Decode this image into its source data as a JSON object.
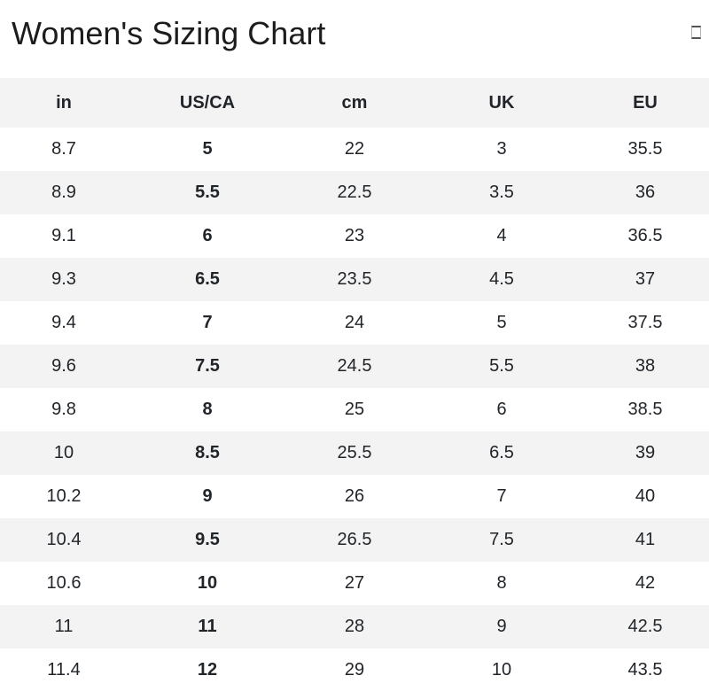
{
  "header": {
    "title": "Women's Sizing Chart",
    "corner_icon": "missing-glyph-box"
  },
  "chart_data": {
    "type": "table",
    "title": "Women's Sizing Chart",
    "columns": [
      "in",
      "US/CA",
      "cm",
      "UK",
      "EU"
    ],
    "rows": [
      [
        "8.7",
        "5",
        "22",
        "3",
        "35.5"
      ],
      [
        "8.9",
        "5.5",
        "22.5",
        "3.5",
        "36"
      ],
      [
        "9.1",
        "6",
        "23",
        "4",
        "36.5"
      ],
      [
        "9.3",
        "6.5",
        "23.5",
        "4.5",
        "37"
      ],
      [
        "9.4",
        "7",
        "24",
        "5",
        "37.5"
      ],
      [
        "9.6",
        "7.5",
        "24.5",
        "5.5",
        "38"
      ],
      [
        "9.8",
        "8",
        "25",
        "6",
        "38.5"
      ],
      [
        "10",
        "8.5",
        "25.5",
        "6.5",
        "39"
      ],
      [
        "10.2",
        "9",
        "26",
        "7",
        "40"
      ],
      [
        "10.4",
        "9.5",
        "26.5",
        "7.5",
        "41"
      ],
      [
        "10.6",
        "10",
        "27",
        "8",
        "42"
      ],
      [
        "11",
        "11",
        "28",
        "9",
        "42.5"
      ],
      [
        "11.4",
        "12",
        "29",
        "10",
        "43.5"
      ]
    ],
    "bold_column": "US/CA",
    "layout": {
      "striped": true,
      "first_data_row": "white",
      "header_position": "top"
    }
  },
  "colors": {
    "background": "#ffffff",
    "stripe": "#f3f3f3",
    "header_bg": "#f3f3f3",
    "text": "#212529",
    "title_text": "#1c1c1c"
  }
}
